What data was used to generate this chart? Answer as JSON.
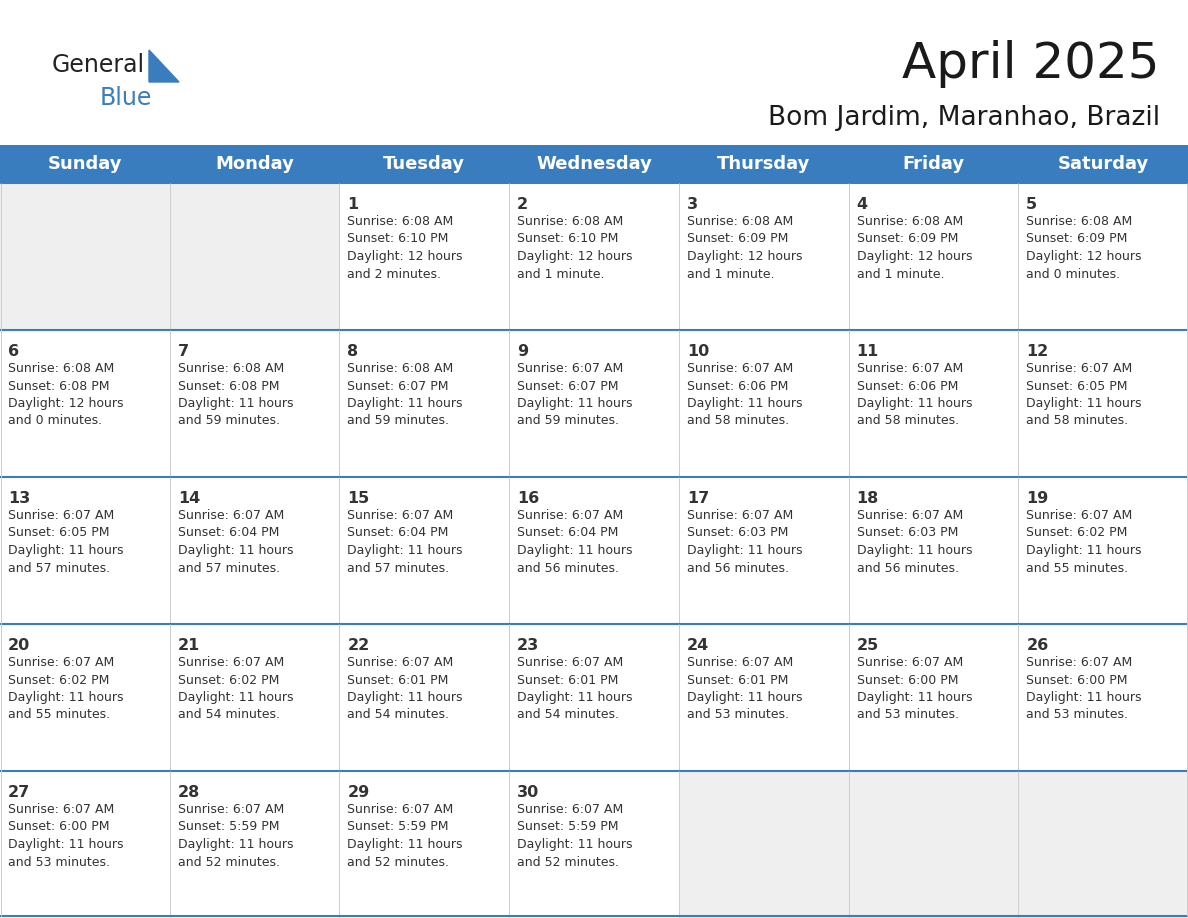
{
  "title": "April 2025",
  "subtitle": "Bom Jardim, Maranhao, Brazil",
  "days_of_week": [
    "Sunday",
    "Monday",
    "Tuesday",
    "Wednesday",
    "Thursday",
    "Friday",
    "Saturday"
  ],
  "header_bg": "#3a7dbf",
  "header_text": "#ffffff",
  "cell_bg_empty": "#efefef",
  "cell_bg_filled": "#ffffff",
  "border_color_blue": "#3a7dbf",
  "border_color_light": "#cccccc",
  "text_color": "#333333",
  "title_color": "#1a1a1a",
  "logo_general_color": "#222222",
  "logo_blue_color": "#3a7dbf",
  "calendar": [
    [
      {
        "day": null,
        "info": ""
      },
      {
        "day": null,
        "info": ""
      },
      {
        "day": 1,
        "info": "Sunrise: 6:08 AM\nSunset: 6:10 PM\nDaylight: 12 hours\nand 2 minutes."
      },
      {
        "day": 2,
        "info": "Sunrise: 6:08 AM\nSunset: 6:10 PM\nDaylight: 12 hours\nand 1 minute."
      },
      {
        "day": 3,
        "info": "Sunrise: 6:08 AM\nSunset: 6:09 PM\nDaylight: 12 hours\nand 1 minute."
      },
      {
        "day": 4,
        "info": "Sunrise: 6:08 AM\nSunset: 6:09 PM\nDaylight: 12 hours\nand 1 minute."
      },
      {
        "day": 5,
        "info": "Sunrise: 6:08 AM\nSunset: 6:09 PM\nDaylight: 12 hours\nand 0 minutes."
      }
    ],
    [
      {
        "day": 6,
        "info": "Sunrise: 6:08 AM\nSunset: 6:08 PM\nDaylight: 12 hours\nand 0 minutes."
      },
      {
        "day": 7,
        "info": "Sunrise: 6:08 AM\nSunset: 6:08 PM\nDaylight: 11 hours\nand 59 minutes."
      },
      {
        "day": 8,
        "info": "Sunrise: 6:08 AM\nSunset: 6:07 PM\nDaylight: 11 hours\nand 59 minutes."
      },
      {
        "day": 9,
        "info": "Sunrise: 6:07 AM\nSunset: 6:07 PM\nDaylight: 11 hours\nand 59 minutes."
      },
      {
        "day": 10,
        "info": "Sunrise: 6:07 AM\nSunset: 6:06 PM\nDaylight: 11 hours\nand 58 minutes."
      },
      {
        "day": 11,
        "info": "Sunrise: 6:07 AM\nSunset: 6:06 PM\nDaylight: 11 hours\nand 58 minutes."
      },
      {
        "day": 12,
        "info": "Sunrise: 6:07 AM\nSunset: 6:05 PM\nDaylight: 11 hours\nand 58 minutes."
      }
    ],
    [
      {
        "day": 13,
        "info": "Sunrise: 6:07 AM\nSunset: 6:05 PM\nDaylight: 11 hours\nand 57 minutes."
      },
      {
        "day": 14,
        "info": "Sunrise: 6:07 AM\nSunset: 6:04 PM\nDaylight: 11 hours\nand 57 minutes."
      },
      {
        "day": 15,
        "info": "Sunrise: 6:07 AM\nSunset: 6:04 PM\nDaylight: 11 hours\nand 57 minutes."
      },
      {
        "day": 16,
        "info": "Sunrise: 6:07 AM\nSunset: 6:04 PM\nDaylight: 11 hours\nand 56 minutes."
      },
      {
        "day": 17,
        "info": "Sunrise: 6:07 AM\nSunset: 6:03 PM\nDaylight: 11 hours\nand 56 minutes."
      },
      {
        "day": 18,
        "info": "Sunrise: 6:07 AM\nSunset: 6:03 PM\nDaylight: 11 hours\nand 56 minutes."
      },
      {
        "day": 19,
        "info": "Sunrise: 6:07 AM\nSunset: 6:02 PM\nDaylight: 11 hours\nand 55 minutes."
      }
    ],
    [
      {
        "day": 20,
        "info": "Sunrise: 6:07 AM\nSunset: 6:02 PM\nDaylight: 11 hours\nand 55 minutes."
      },
      {
        "day": 21,
        "info": "Sunrise: 6:07 AM\nSunset: 6:02 PM\nDaylight: 11 hours\nand 54 minutes."
      },
      {
        "day": 22,
        "info": "Sunrise: 6:07 AM\nSunset: 6:01 PM\nDaylight: 11 hours\nand 54 minutes."
      },
      {
        "day": 23,
        "info": "Sunrise: 6:07 AM\nSunset: 6:01 PM\nDaylight: 11 hours\nand 54 minutes."
      },
      {
        "day": 24,
        "info": "Sunrise: 6:07 AM\nSunset: 6:01 PM\nDaylight: 11 hours\nand 53 minutes."
      },
      {
        "day": 25,
        "info": "Sunrise: 6:07 AM\nSunset: 6:00 PM\nDaylight: 11 hours\nand 53 minutes."
      },
      {
        "day": 26,
        "info": "Sunrise: 6:07 AM\nSunset: 6:00 PM\nDaylight: 11 hours\nand 53 minutes."
      }
    ],
    [
      {
        "day": 27,
        "info": "Sunrise: 6:07 AM\nSunset: 6:00 PM\nDaylight: 11 hours\nand 53 minutes."
      },
      {
        "day": 28,
        "info": "Sunrise: 6:07 AM\nSunset: 5:59 PM\nDaylight: 11 hours\nand 52 minutes."
      },
      {
        "day": 29,
        "info": "Sunrise: 6:07 AM\nSunset: 5:59 PM\nDaylight: 11 hours\nand 52 minutes."
      },
      {
        "day": 30,
        "info": "Sunrise: 6:07 AM\nSunset: 5:59 PM\nDaylight: 11 hours\nand 52 minutes."
      },
      {
        "day": null,
        "info": ""
      },
      {
        "day": null,
        "info": ""
      },
      {
        "day": null,
        "info": ""
      }
    ]
  ]
}
